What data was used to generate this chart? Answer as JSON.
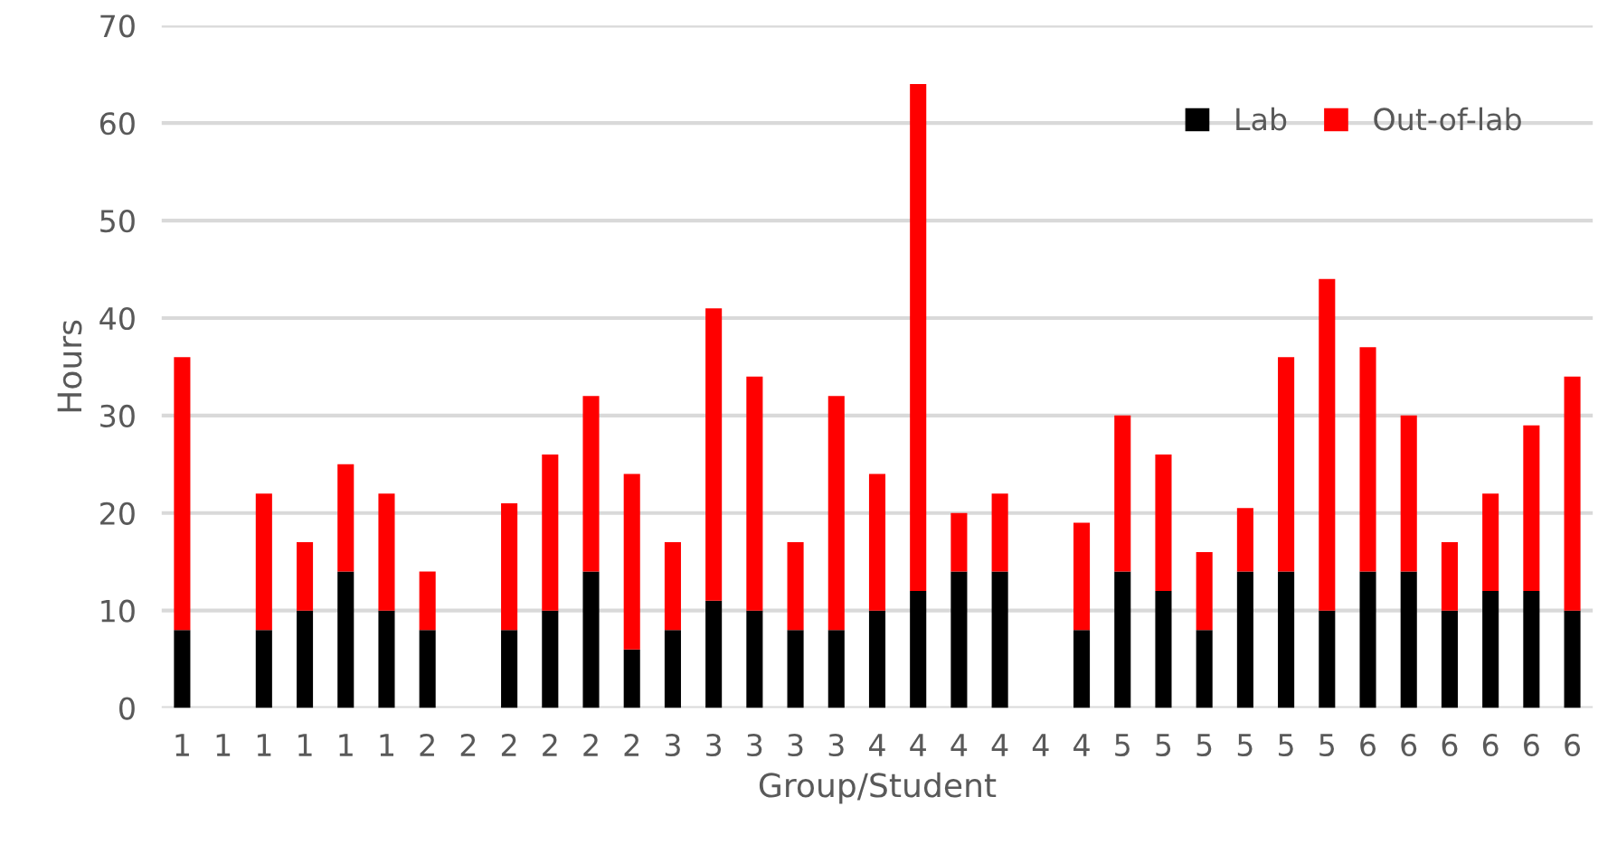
{
  "chart_data": {
    "type": "bar",
    "stacked": true,
    "xlabel": "Group/Student",
    "ylabel": "Hours",
    "categories": [
      "1",
      "1",
      "1",
      "1",
      "1",
      "1",
      "2",
      "2",
      "2",
      "2",
      "2",
      "2",
      "3",
      "3",
      "3",
      "3",
      "3",
      "4",
      "4",
      "4",
      "4",
      "4",
      "4",
      "5",
      "5",
      "5",
      "5",
      "5",
      "5",
      "6",
      "6",
      "6",
      "6",
      "6",
      "6"
    ],
    "series": [
      {
        "name": "Lab",
        "color": "#000000",
        "values": [
          8,
          null,
          8,
          10,
          14,
          10,
          8,
          null,
          8,
          10,
          14,
          6,
          8,
          11,
          10,
          8,
          8,
          10,
          12,
          14,
          14,
          null,
          8,
          14,
          12,
          8,
          14,
          14,
          10,
          14,
          14,
          10,
          12,
          12,
          10
        ]
      },
      {
        "name": "Out-of-lab",
        "color": "#ff0000",
        "values": [
          28,
          null,
          14,
          7,
          11,
          12,
          6,
          null,
          13,
          16,
          18,
          18,
          9,
          30,
          24,
          9,
          24,
          14,
          52,
          6,
          8,
          null,
          11,
          16,
          14,
          8,
          6.5,
          22,
          34,
          23,
          16,
          7,
          10,
          17,
          24
        ]
      }
    ],
    "ylim": [
      0,
      70
    ],
    "yticks": [
      0,
      10,
      20,
      30,
      40,
      50,
      60,
      70
    ],
    "grid": "y",
    "legend": "top right"
  }
}
